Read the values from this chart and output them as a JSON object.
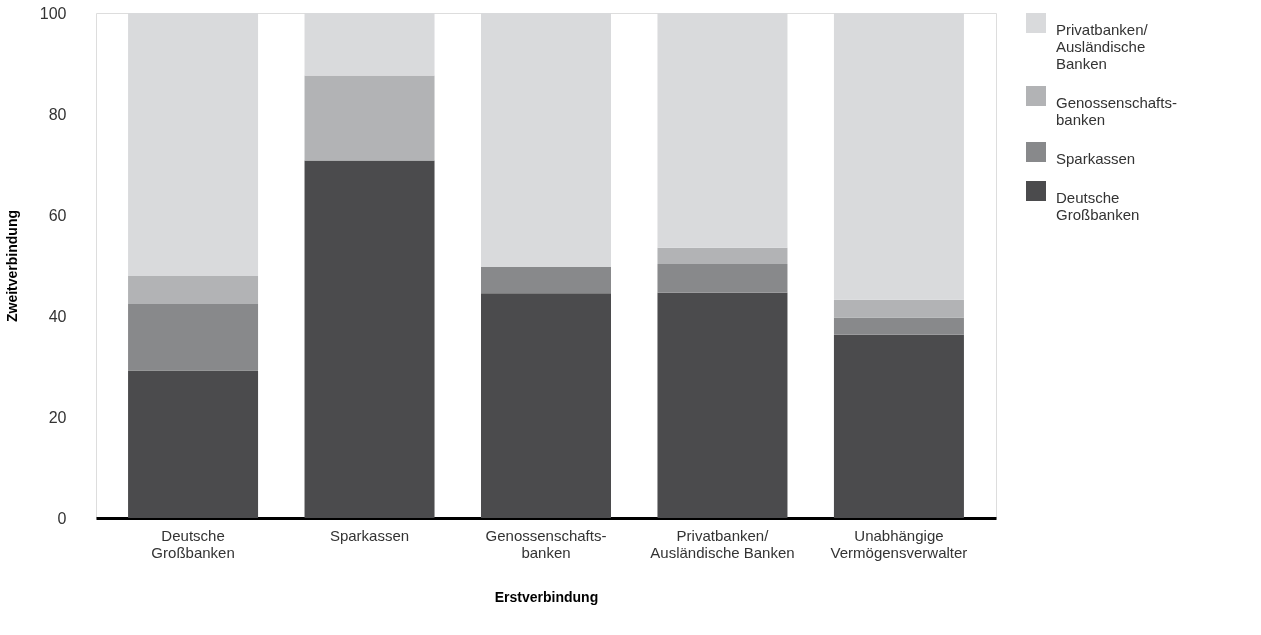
{
  "chart_data": {
    "type": "bar",
    "stacked": true,
    "xlabel": "Erstverbindung",
    "ylabel": "Zweitverbindung",
    "categories": [
      "Deutsche\nGroßbanken",
      "Sparkassen",
      "Genossenschafts-\nbanken",
      "Privatbanken/\nAusländische Banken",
      "Unabhängige\nVermögensverwalter"
    ],
    "series": [
      {
        "name": "Deutsche\nGroßbanken",
        "color": "#4b4b4d",
        "values": [
          29.2,
          70.8,
          44.5,
          44.6,
          36.3
        ]
      },
      {
        "name": "Sparkassen",
        "color": "#88898b",
        "values": [
          13.2,
          0,
          5.2,
          5.7,
          3.4
        ]
      },
      {
        "name": "Genossenschafts-\nbanken",
        "color": "#b2b3b5",
        "values": [
          5.5,
          16.8,
          0,
          3.2,
          3.5
        ]
      },
      {
        "name": "Privatbanken/\nAusländische\nBanken",
        "color": "#d9dadc",
        "values": [
          52.1,
          12.4,
          50.3,
          46.5,
          56.8
        ]
      }
    ],
    "ylim": [
      0,
      100
    ],
    "yticks": [
      0,
      20,
      40,
      60,
      80,
      100
    ],
    "grid": false,
    "legend": "right"
  }
}
